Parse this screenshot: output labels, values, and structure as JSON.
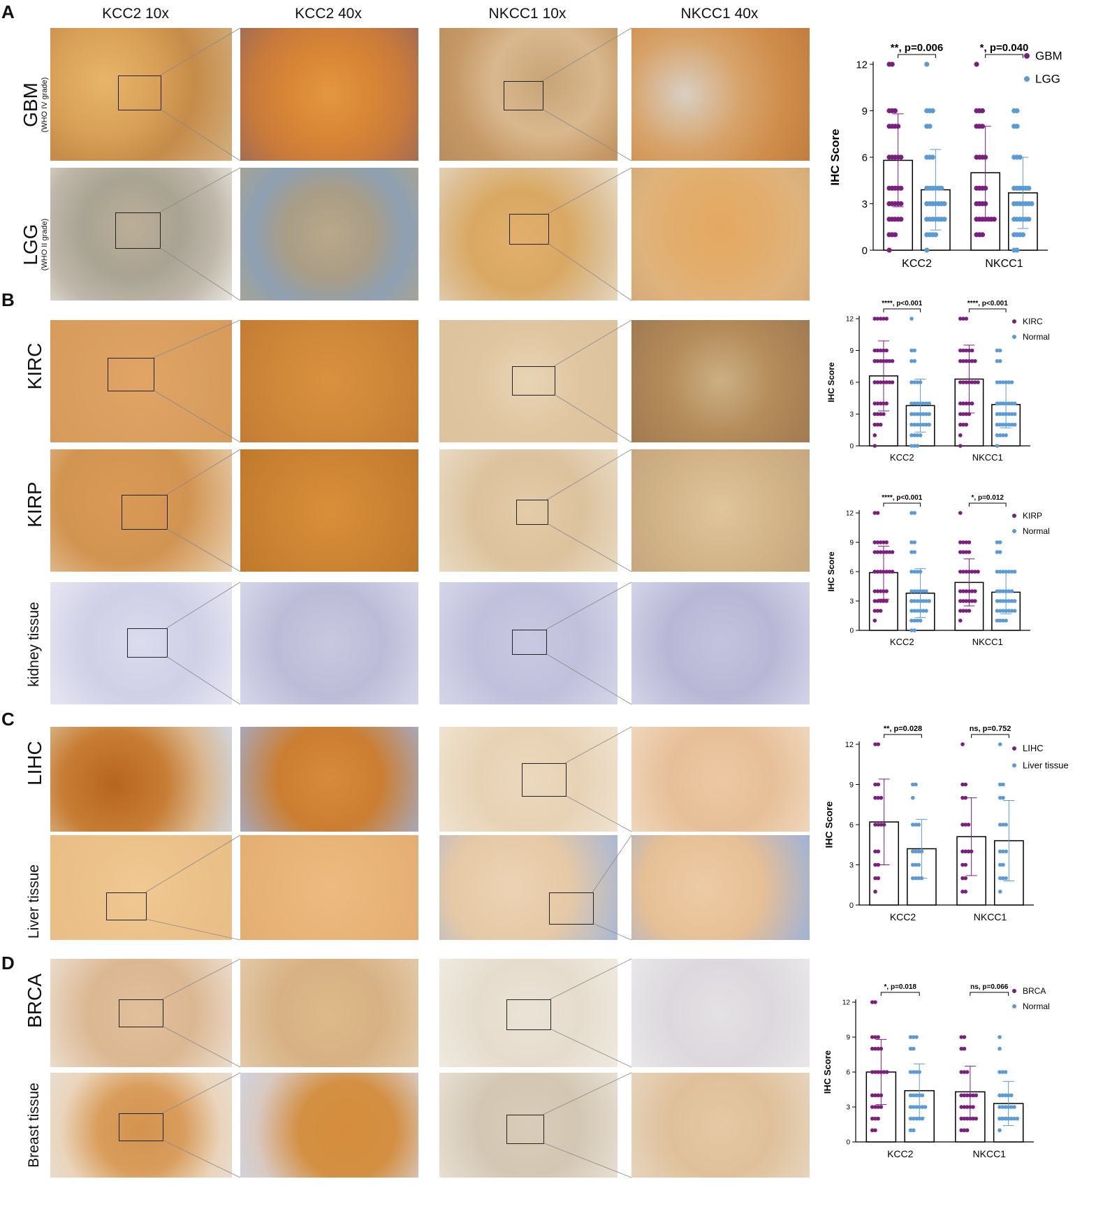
{
  "column_headers": [
    "KCC2 10x",
    "KCC2 40x",
    "NKCC1 10x",
    "NKCC1 40x"
  ],
  "colors": {
    "tumor": "#7b1f7f",
    "normal": "#5b9bd5",
    "bar_edge": "#000000"
  },
  "panels": [
    {
      "letter": "A",
      "rows": [
        {
          "label": "GBM",
          "sublabel": "(WHO IV grade)"
        },
        {
          "label": "LGG",
          "sublabel": "(WHO II grade)"
        }
      ]
    },
    {
      "letter": "B",
      "rows": [
        {
          "label": "KIRC",
          "sublabel": ""
        },
        {
          "label": "KIRP",
          "sublabel": ""
        },
        {
          "label": "kidney tissue",
          "sublabel": ""
        }
      ]
    },
    {
      "letter": "C",
      "rows": [
        {
          "label": "LIHC",
          "sublabel": ""
        },
        {
          "label": "Liver tissue",
          "sublabel": ""
        }
      ]
    },
    {
      "letter": "D",
      "rows": [
        {
          "label": "BRCA",
          "sublabel": ""
        },
        {
          "label": "Breast tissue",
          "sublabel": ""
        }
      ]
    }
  ],
  "chart_data": [
    {
      "type": "bar",
      "panel": "A",
      "ylabel": "IHC Score",
      "ylim": [
        0,
        12
      ],
      "yticks": [
        0,
        3,
        6,
        9,
        12
      ],
      "categories": [
        "KCC2",
        "NKCC1"
      ],
      "series": [
        {
          "name": "GBM",
          "values": [
            5.8,
            5.0
          ],
          "sd": [
            3.0,
            3.0
          ]
        },
        {
          "name": "LGG",
          "values": [
            3.9,
            3.7
          ],
          "sd": [
            2.6,
            2.3
          ]
        }
      ],
      "annotations": [
        "**, p=0.006",
        "*, p=0.040"
      ],
      "points": [
        [
          12,
          12,
          9,
          9,
          9,
          8,
          8,
          8,
          8,
          6,
          6,
          6,
          6,
          6,
          4,
          4,
          4,
          4,
          4,
          3,
          3,
          3,
          3,
          3,
          2,
          2,
          2,
          2,
          2,
          1,
          1,
          1,
          0
        ],
        [
          12,
          9,
          9,
          9,
          8,
          8,
          6,
          6,
          6,
          4,
          4,
          4,
          4,
          4,
          4,
          3,
          3,
          3,
          3,
          3,
          3,
          3,
          2,
          2,
          2,
          2,
          2,
          2,
          2,
          1,
          1,
          1,
          1,
          0
        ],
        [
          12,
          9,
          9,
          9,
          8,
          8,
          8,
          6,
          6,
          6,
          6,
          4,
          4,
          4,
          4,
          3,
          3,
          3,
          3,
          2,
          2,
          2,
          2,
          2,
          2,
          2,
          1,
          1,
          1
        ],
        [
          9,
          9,
          8,
          8,
          6,
          6,
          6,
          4,
          4,
          4,
          4,
          4,
          4,
          3,
          3,
          3,
          3,
          3,
          3,
          3,
          3,
          2,
          2,
          2,
          2,
          2,
          2,
          1,
          1,
          1,
          1,
          0,
          0
        ]
      ]
    },
    {
      "type": "bar",
      "panel": "B-KIRC",
      "ylabel": "IHC Score",
      "ylim": [
        0,
        12
      ],
      "yticks": [
        0,
        3,
        6,
        9,
        12
      ],
      "categories": [
        "KCC2",
        "NKCC1"
      ],
      "series": [
        {
          "name": "KIRC",
          "values": [
            6.6,
            6.3
          ],
          "sd": [
            3.3,
            3.2
          ]
        },
        {
          "name": "Normal",
          "values": [
            3.8,
            3.9
          ],
          "sd": [
            2.5,
            2.2
          ]
        }
      ],
      "annotations": [
        "****, p<0.001",
        "****, p<0.001"
      ],
      "points": [
        [
          12,
          12,
          12,
          12,
          12,
          9,
          9,
          9,
          9,
          9,
          8,
          8,
          8,
          8,
          8,
          8,
          8,
          8,
          6,
          6,
          6,
          6,
          6,
          6,
          6,
          6,
          4,
          4,
          4,
          4,
          4,
          3,
          3,
          3,
          3,
          2,
          2,
          2,
          1,
          0
        ],
        [
          12,
          9,
          9,
          8,
          8,
          6,
          6,
          6,
          6,
          4,
          4,
          4,
          4,
          4,
          4,
          4,
          3,
          3,
          3,
          3,
          3,
          3,
          3,
          3,
          2,
          2,
          2,
          2,
          2,
          2,
          2,
          1,
          1,
          1,
          1,
          0,
          0,
          0
        ],
        [
          12,
          12,
          12,
          9,
          9,
          9,
          9,
          9,
          8,
          8,
          8,
          8,
          8,
          8,
          6,
          6,
          6,
          6,
          6,
          6,
          6,
          4,
          4,
          4,
          4,
          4,
          3,
          3,
          3,
          3,
          2,
          2,
          2,
          1,
          0
        ],
        [
          9,
          9,
          8,
          8,
          6,
          6,
          6,
          6,
          6,
          6,
          4,
          4,
          4,
          4,
          4,
          4,
          4,
          3,
          3,
          3,
          3,
          3,
          3,
          3,
          2,
          2,
          2,
          2,
          2,
          2,
          2,
          1,
          1,
          1,
          1,
          0
        ]
      ]
    },
    {
      "type": "bar",
      "panel": "B-KIRP",
      "ylabel": "IHC Score",
      "ylim": [
        0,
        12
      ],
      "yticks": [
        0,
        3,
        6,
        9,
        12
      ],
      "categories": [
        "KCC2",
        "NKCC1"
      ],
      "series": [
        {
          "name": "KIRP",
          "values": [
            5.9,
            4.9
          ],
          "sd": [
            2.7,
            2.4
          ]
        },
        {
          "name": "Normal",
          "values": [
            3.8,
            3.9
          ],
          "sd": [
            2.5,
            2.2
          ]
        }
      ],
      "annotations": [
        "****, p<0.001",
        "*, p=0.012"
      ],
      "points": [
        [
          12,
          12,
          9,
          9,
          9,
          9,
          9,
          8,
          8,
          8,
          8,
          8,
          8,
          8,
          6,
          6,
          6,
          6,
          6,
          6,
          6,
          6,
          4,
          4,
          4,
          4,
          4,
          3,
          3,
          3,
          3,
          3,
          2,
          2,
          2,
          1
        ],
        [
          12,
          12,
          9,
          9,
          8,
          8,
          6,
          6,
          6,
          6,
          4,
          4,
          4,
          4,
          4,
          4,
          3,
          3,
          3,
          3,
          3,
          3,
          3,
          3,
          2,
          2,
          2,
          2,
          2,
          2,
          1,
          1,
          1,
          1,
          0,
          0
        ],
        [
          12,
          9,
          9,
          9,
          9,
          8,
          8,
          8,
          8,
          6,
          6,
          6,
          6,
          6,
          6,
          6,
          4,
          4,
          4,
          4,
          4,
          4,
          3,
          3,
          3,
          3,
          3,
          3,
          2,
          2,
          2,
          2,
          1
        ],
        [
          9,
          9,
          8,
          8,
          6,
          6,
          6,
          6,
          6,
          6,
          6,
          4,
          4,
          4,
          4,
          4,
          4,
          3,
          3,
          3,
          3,
          3,
          3,
          3,
          2,
          2,
          2,
          2,
          2,
          2,
          2,
          1,
          1,
          1,
          1
        ]
      ]
    },
    {
      "type": "bar",
      "panel": "C",
      "ylabel": "IHC Score",
      "ylim": [
        0,
        12
      ],
      "yticks": [
        0,
        3,
        6,
        9,
        12
      ],
      "categories": [
        "KCC2",
        "NKCC1"
      ],
      "series": [
        {
          "name": "LIHC",
          "values": [
            6.2,
            5.1
          ],
          "sd": [
            3.2,
            2.9
          ]
        },
        {
          "name": "Liver tissue",
          "values": [
            4.2,
            4.8
          ],
          "sd": [
            2.2,
            3.0
          ]
        }
      ],
      "annotations": [
        "**, p=0.028",
        "ns, p=0.752"
      ],
      "points": [
        [
          12,
          12,
          9,
          9,
          8,
          8,
          8,
          6,
          6,
          6,
          6,
          4,
          4,
          3,
          3,
          2,
          2,
          1
        ],
        [
          9,
          9,
          8,
          6,
          6,
          6,
          4,
          4,
          4,
          4,
          3,
          3,
          3,
          2,
          2,
          2,
          2
        ],
        [
          12,
          9,
          9,
          8,
          8,
          6,
          6,
          6,
          4,
          4,
          4,
          4,
          3,
          3,
          2,
          2,
          1,
          1
        ],
        [
          12,
          9,
          9,
          8,
          8,
          6,
          6,
          6,
          4,
          4,
          4,
          3,
          3,
          2,
          2,
          2,
          1
        ]
      ]
    },
    {
      "type": "bar",
      "panel": "D",
      "ylabel": "IHC Score",
      "ylim": [
        0,
        12
      ],
      "yticks": [
        0,
        3,
        6,
        9,
        12
      ],
      "categories": [
        "KCC2",
        "NKCC1"
      ],
      "series": [
        {
          "name": "BRCA",
          "values": [
            6.0,
            4.3
          ],
          "sd": [
            2.8,
            2.2
          ]
        },
        {
          "name": "Normal",
          "values": [
            4.4,
            3.3
          ],
          "sd": [
            2.3,
            1.9
          ]
        }
      ],
      "annotations": [
        "*, p=0.018",
        "ns, p=0.066"
      ],
      "points": [
        [
          12,
          12,
          9,
          9,
          9,
          8,
          8,
          8,
          8,
          6,
          6,
          6,
          6,
          6,
          6,
          4,
          4,
          4,
          4,
          3,
          3,
          3,
          3,
          2,
          2,
          2,
          1,
          1
        ],
        [
          9,
          9,
          9,
          8,
          8,
          6,
          6,
          6,
          6,
          4,
          4,
          4,
          4,
          4,
          3,
          3,
          3,
          3,
          3,
          3,
          2,
          2,
          2,
          2,
          2,
          1,
          1
        ],
        [
          9,
          9,
          8,
          8,
          6,
          6,
          6,
          4,
          4,
          4,
          4,
          4,
          4,
          3,
          3,
          3,
          3,
          3,
          2,
          2,
          2,
          2,
          2,
          2,
          1,
          1,
          1
        ],
        [
          9,
          8,
          6,
          6,
          6,
          4,
          4,
          4,
          4,
          4,
          3,
          3,
          3,
          3,
          3,
          3,
          2,
          2,
          2,
          2,
          2,
          2,
          2,
          2,
          2,
          2,
          1
        ]
      ]
    }
  ]
}
